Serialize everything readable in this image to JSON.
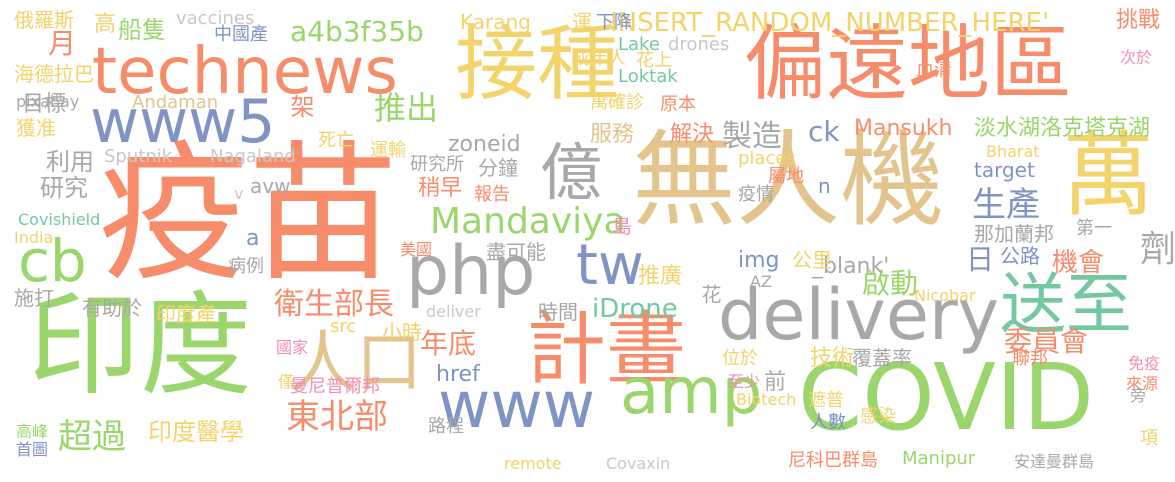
{
  "words": [
    {
      "text": "疫苗",
      "color": "#f78c6b"
    },
    {
      "text": "無人機",
      "color": "#e3c48d"
    },
    {
      "text": "印度",
      "color": "#9ad66b"
    },
    {
      "text": "偏遠地區",
      "color": "#f78c6b"
    },
    {
      "text": "接種",
      "color": "#f3d36b"
    },
    {
      "text": "technews",
      "color": "#f78c6b"
    },
    {
      "text": "COVID",
      "color": "#9ad66b"
    },
    {
      "text": "delivery",
      "color": "#a8a8a8"
    },
    {
      "text": "計畫",
      "color": "#f78c6b"
    },
    {
      "text": "www5",
      "color": "#7f93c5"
    },
    {
      "text": "萬",
      "color": "#f3d36b"
    },
    {
      "text": "php",
      "color": "#a8a8a8"
    },
    {
      "text": "www",
      "color": "#7f93c5"
    },
    {
      "text": "amp",
      "color": "#9ad66b"
    },
    {
      "text": "送至",
      "color": "#74c8a0"
    },
    {
      "text": "億",
      "color": "#a8a8a8"
    },
    {
      "text": "人口",
      "color": "#e3c48d"
    },
    {
      "text": "cb",
      "color": "#9ad66b"
    },
    {
      "text": "tw",
      "color": "#7f93c5"
    },
    {
      "text": "東北部",
      "color": "#f78c6b"
    },
    {
      "text": "超過",
      "color": "#9ad66b"
    },
    {
      "text": "Mandaviya",
      "color": "#9ad66b"
    },
    {
      "text": "a4b3f35b",
      "color": "#9ad66b"
    },
    {
      "text": "INSERT_RANDOM_NUMBER_HERE'",
      "color": "#f3d36b"
    },
    {
      "text": "Mansukh",
      "color": "#f78c6b"
    },
    {
      "text": "淡水湖洛克塔克湖",
      "color": "#9ad66b"
    },
    {
      "text": "推出",
      "color": "#9ad66b"
    },
    {
      "text": "生產",
      "color": "#7f93c5"
    },
    {
      "text": "衛生部長",
      "color": "#f78c6b"
    },
    {
      "text": "製造",
      "color": "#a8a8a8"
    },
    {
      "text": "委員會",
      "color": "#f78c6b"
    },
    {
      "text": "iDrone",
      "color": "#74c8a0"
    },
    {
      "text": "技術",
      "color": "#f3d36b"
    },
    {
      "text": "覆蓋率",
      "color": "#a8a8a8"
    },
    {
      "text": "年底",
      "color": "#f78c6b"
    },
    {
      "text": "zoneid",
      "color": "#a8a8a8"
    },
    {
      "text": "月",
      "color": "#f78c6b"
    },
    {
      "text": "劑",
      "color": "#a8a8a8"
    },
    {
      "text": "日",
      "color": "#7f93c5"
    },
    {
      "text": "href",
      "color": "#7f93c5"
    },
    {
      "text": "印度醫學",
      "color": "#f3d36b"
    },
    {
      "text": "機會",
      "color": "#f78c6b"
    },
    {
      "text": "ck",
      "color": "#7f93c5"
    },
    {
      "text": "啟動",
      "color": "#9ad66b"
    },
    {
      "text": "_blank'",
      "color": "#a8a8a8"
    },
    {
      "text": "船隻",
      "color": "#9ad66b"
    },
    {
      "text": "利用",
      "color": "#a8a8a8"
    },
    {
      "text": "研究",
      "color": "#a8a8a8"
    },
    {
      "text": "目標",
      "color": "#a8a8a8"
    },
    {
      "text": "Karang",
      "color": "#f3d36b"
    },
    {
      "text": "運",
      "color": "#f3d36b"
    },
    {
      "text": "下降",
      "color": "#7f93c5"
    },
    {
      "text": "挑戰",
      "color": "#f78c6b"
    },
    {
      "text": "俄羅斯",
      "color": "#f3d36b"
    },
    {
      "text": "高",
      "color": "#f3d36b"
    },
    {
      "text": "中國產",
      "color": "#7f93c5"
    },
    {
      "text": "vaccines",
      "color": "#c8c8c8"
    },
    {
      "text": "海德拉巴",
      "color": "#f3d36b"
    },
    {
      "text": "獲准",
      "color": "#f3d36b"
    },
    {
      "text": "pixabay",
      "color": "#a8a8a8"
    },
    {
      "text": "Andaman",
      "color": "#e3c48d"
    },
    {
      "text": "Lake",
      "color": "#74c8a0"
    },
    {
      "text": "drones",
      "color": "#c8c8c8"
    },
    {
      "text": "成年人",
      "color": "#f3d36b"
    },
    {
      "text": "花上",
      "color": "#f3d36b"
    },
    {
      "text": "Loktak",
      "color": "#74c8a0"
    },
    {
      "text": "萬確診",
      "color": "#f3d36b"
    },
    {
      "text": "原本",
      "color": "#f78c6b"
    },
    {
      "text": "血清",
      "color": "#f78c6b"
    },
    {
      "text": "次於",
      "color": "#f08fb0"
    },
    {
      "text": "架",
      "color": "#f78c6b"
    },
    {
      "text": "Sputnik",
      "color": "#c8c8c8"
    },
    {
      "text": "Nagaland",
      "color": "#c8c8c8"
    },
    {
      "text": "死亡",
      "color": "#f3d36b"
    },
    {
      "text": "運輸",
      "color": "#f3d36b"
    },
    {
      "text": "服務",
      "color": "#e3c48d"
    },
    {
      "text": "解決",
      "color": "#f78c6b"
    },
    {
      "text": "研究所",
      "color": "#a8a8a8"
    },
    {
      "text": "稍早",
      "color": "#f78c6b"
    },
    {
      "text": "分鐘",
      "color": "#a8a8a8"
    },
    {
      "text": "報告",
      "color": "#f78c6b"
    },
    {
      "text": "places",
      "color": "#f3d36b"
    },
    {
      "text": "屬地",
      "color": "#f78c6b"
    },
    {
      "text": "Bharat",
      "color": "#f3d36b"
    },
    {
      "text": "target",
      "color": "#7f93c5"
    },
    {
      "text": "n",
      "color": "#7f93c5"
    },
    {
      "text": "疫情",
      "color": "#a8a8a8"
    },
    {
      "text": "avw",
      "color": "#a8a8a8"
    },
    {
      "text": "v",
      "color": "#c8c8c8"
    },
    {
      "text": "Covishield",
      "color": "#74c8a0"
    },
    {
      "text": "India",
      "color": "#f3d36b"
    },
    {
      "text": "a",
      "color": "#7f93c5"
    },
    {
      "text": "病例",
      "color": "#a8a8a8"
    },
    {
      "text": "美國",
      "color": "#f78c6b"
    },
    {
      "text": "盡可能",
      "color": "#a8a8a8"
    },
    {
      "text": "島",
      "color": "#f08fb0"
    },
    {
      "text": "第一",
      "color": "#a8a8a8"
    },
    {
      "text": "那加蘭邦",
      "color": "#a8a8a8"
    },
    {
      "text": "公里",
      "color": "#f3d36b"
    },
    {
      "text": "img",
      "color": "#7f93c5"
    },
    {
      "text": "公路",
      "color": "#7f93c5"
    },
    {
      "text": "推廣",
      "color": "#f3d36b"
    },
    {
      "text": "施打",
      "color": "#a8a8a8"
    },
    {
      "text": "有助於",
      "color": "#a8a8a8"
    },
    {
      "text": "印度產",
      "color": "#f3d36b"
    },
    {
      "text": "deliver",
      "color": "#c8c8c8"
    },
    {
      "text": "AZ",
      "color": "#a8a8a8"
    },
    {
      "text": "Nicobar",
      "color": "#f3d36b"
    },
    {
      "text": "花",
      "color": "#a8a8a8"
    },
    {
      "text": "src",
      "color": "#f3d36b"
    },
    {
      "text": "時間",
      "color": "#a8a8a8"
    },
    {
      "text": "小時",
      "color": "#f3d36b"
    },
    {
      "text": "國家",
      "color": "#f08fb0"
    },
    {
      "text": "位於",
      "color": "#f3d36b"
    },
    {
      "text": "聯邦",
      "color": "#f78c6b"
    },
    {
      "text": "免疫",
      "color": "#f08fb0"
    },
    {
      "text": "僅",
      "color": "#f3d36b"
    },
    {
      "text": "前",
      "color": "#a8a8a8"
    },
    {
      "text": "至少",
      "color": "#f08fb0"
    },
    {
      "text": "Biotech",
      "color": "#f3d36b"
    },
    {
      "text": "來源",
      "color": "#f78c6b"
    },
    {
      "text": "曼尼普爾邦",
      "color": "#f08fb0"
    },
    {
      "text": "遮普",
      "color": "#f3d36b"
    },
    {
      "text": "人數",
      "color": "#7f93c5"
    },
    {
      "text": "感染",
      "color": "#f3d36b"
    },
    {
      "text": "旁",
      "color": "#a8a8a8"
    },
    {
      "text": "高峰",
      "color": "#9ad66b"
    },
    {
      "text": "路程",
      "color": "#a8a8a8"
    },
    {
      "text": "首圖",
      "color": "#7f93c5"
    },
    {
      "text": "項",
      "color": "#f3d36b"
    },
    {
      "text": "remote",
      "color": "#f3d36b"
    },
    {
      "text": "Covaxin",
      "color": "#c8c8c8"
    },
    {
      "text": "尼科巴群島",
      "color": "#f78c6b"
    },
    {
      "text": "Manipur",
      "color": "#9ad66b"
    },
    {
      "text": "安達曼群島",
      "color": "#a8a8a8"
    }
  ]
}
